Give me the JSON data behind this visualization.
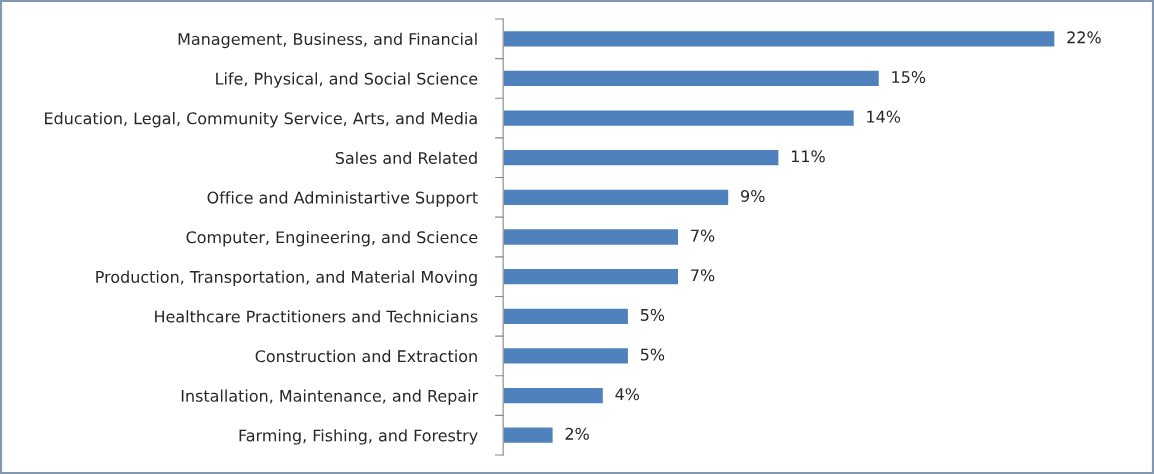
{
  "chart_data": {
    "type": "bar",
    "orientation": "horizontal",
    "categories": [
      "Management, Business, and Financial",
      "Life, Physical, and Social Science",
      "Education, Legal, Community Service, Arts, and Media",
      "Sales and Related",
      "Office and Administartive Support",
      "Computer, Engineering, and Science",
      "Production, Transportation, and Material Moving",
      "Healthcare Practitioners and Technicians",
      "Construction and Extraction",
      "Installation, Maintenance, and Repair",
      "Farming, Fishing, and Forestry"
    ],
    "values": [
      22,
      15,
      14,
      11,
      9,
      7,
      7,
      5,
      5,
      4,
      2
    ],
    "value_labels": [
      "22%",
      "15%",
      "14%",
      "11%",
      "9%",
      "7%",
      "7%",
      "5%",
      "5%",
      "4%",
      "2%"
    ],
    "color": "#4f81bd",
    "grid": false,
    "legend": false,
    "tick_labels": "y"
  }
}
